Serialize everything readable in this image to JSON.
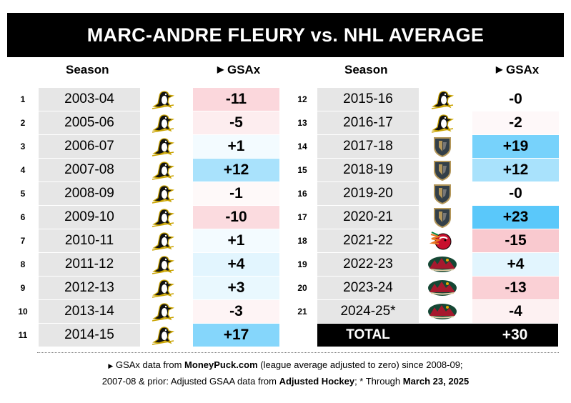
{
  "title": "MARC-ANDRE FLEURY vs. NHL AVERAGE",
  "headers": {
    "season": "Season",
    "metric_arrow": "▶",
    "metric": "GSAx"
  },
  "colors": {
    "max_positive": "#5ac8fa",
    "max_negative": "#f9c9cf",
    "neutral": "#ffffff",
    "season_bg": "#e6e6e6"
  },
  "chart_data": {
    "type": "table",
    "title": "MARC-ANDRE FLEURY vs. NHL AVERAGE",
    "columns": [
      "Season",
      "Team",
      "GSAx"
    ],
    "rows": [
      {
        "n": "1",
        "season": "2003-04",
        "team": "penguins-icon",
        "gsax": -11,
        "label": "-11"
      },
      {
        "n": "2",
        "season": "2005-06",
        "team": "penguins-icon",
        "gsax": -5,
        "label": "-5"
      },
      {
        "n": "3",
        "season": "2006-07",
        "team": "penguins-icon",
        "gsax": 1,
        "label": "+1"
      },
      {
        "n": "4",
        "season": "2007-08",
        "team": "penguins-icon",
        "gsax": 12,
        "label": "+12"
      },
      {
        "n": "5",
        "season": "2008-09",
        "team": "penguins-icon",
        "gsax": -1,
        "label": "-1"
      },
      {
        "n": "6",
        "season": "2009-10",
        "team": "penguins-icon",
        "gsax": -10,
        "label": "-10"
      },
      {
        "n": "7",
        "season": "2010-11",
        "team": "penguins-icon",
        "gsax": 1,
        "label": "+1"
      },
      {
        "n": "8",
        "season": "2011-12",
        "team": "penguins-icon",
        "gsax": 4,
        "label": "+4"
      },
      {
        "n": "9",
        "season": "2012-13",
        "team": "penguins-icon",
        "gsax": 3,
        "label": "+3"
      },
      {
        "n": "10",
        "season": "2013-14",
        "team": "penguins-icon",
        "gsax": -3,
        "label": "-3"
      },
      {
        "n": "11",
        "season": "2014-15",
        "team": "penguins-icon",
        "gsax": 17,
        "label": "+17"
      },
      {
        "n": "12",
        "season": "2015-16",
        "team": "penguins-icon",
        "gsax": 0,
        "label": "-0"
      },
      {
        "n": "13",
        "season": "2016-17",
        "team": "penguins-icon",
        "gsax": -2,
        "label": "-2"
      },
      {
        "n": "14",
        "season": "2017-18",
        "team": "golden-knights-icon",
        "gsax": 19,
        "label": "+19"
      },
      {
        "n": "15",
        "season": "2018-19",
        "team": "golden-knights-icon",
        "gsax": 12,
        "label": "+12"
      },
      {
        "n": "16",
        "season": "2019-20",
        "team": "golden-knights-icon",
        "gsax": 0,
        "label": "-0"
      },
      {
        "n": "17",
        "season": "2020-21",
        "team": "golden-knights-icon",
        "gsax": 23,
        "label": "+23"
      },
      {
        "n": "18",
        "season": "2021-22",
        "team": "blackhawks-icon",
        "gsax": -15,
        "label": "-15"
      },
      {
        "n": "19",
        "season": "2022-23",
        "team": "wild-icon",
        "gsax": 4,
        "label": "+4"
      },
      {
        "n": "20",
        "season": "2023-24",
        "team": "wild-icon",
        "gsax": -13,
        "label": "-13"
      },
      {
        "n": "21",
        "season": "2024-25*",
        "team": "wild-icon",
        "gsax": -4,
        "label": "-4"
      }
    ],
    "total": {
      "label": "TOTAL",
      "gsax": 30,
      "value_label": "+30"
    }
  },
  "footnote": {
    "line1_arrow": "▶",
    "line1_a": " GSAx data from ",
    "line1_b": "MoneyPuck.com",
    "line1_c": " (league average adjusted to zero) since 2008-09;",
    "line2_a": "2007-08 & prior: Adjusted GSAA data from ",
    "line2_b": "Adjusted Hockey",
    "line2_c": "; * Through ",
    "line2_d": "March 23, 2025"
  }
}
